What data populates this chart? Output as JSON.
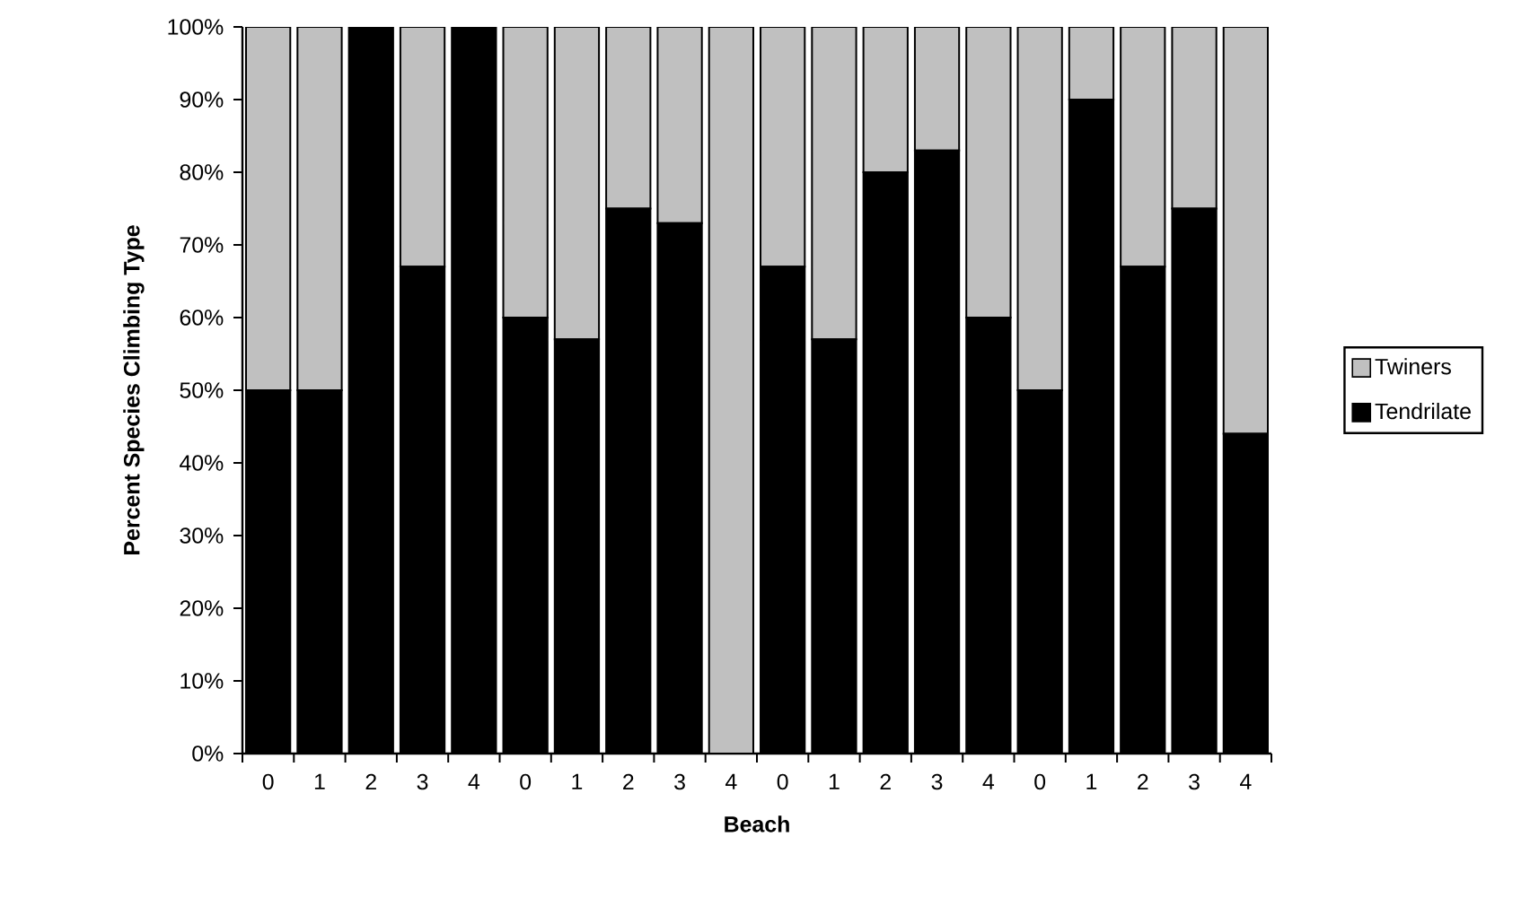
{
  "chart_data": {
    "type": "bar",
    "stacked": true,
    "xlabel": "Beach",
    "ylabel": "Percent Species Climbing Type",
    "categories": [
      "0",
      "1",
      "2",
      "3",
      "4",
      "0",
      "1",
      "2",
      "3",
      "4",
      "0",
      "1",
      "2",
      "3",
      "4",
      "0",
      "1",
      "2",
      "3",
      "4"
    ],
    "series": [
      {
        "name": "Tendrilate",
        "color": "#000000",
        "values": [
          50,
          50,
          100,
          67,
          100,
          60,
          57,
          75,
          73,
          0,
          67,
          57,
          80,
          83,
          60,
          50,
          90,
          67,
          75,
          44
        ]
      },
      {
        "name": "Twiners",
        "color": "#c0c0c0",
        "values": [
          50,
          50,
          0,
          33,
          0,
          40,
          43,
          25,
          27,
          100,
          33,
          43,
          20,
          17,
          40,
          50,
          10,
          33,
          25,
          56
        ]
      }
    ],
    "ylim": [
      0,
      100
    ],
    "yticks": [
      {
        "value": 0,
        "label": "0%"
      },
      {
        "value": 10,
        "label": "10%"
      },
      {
        "value": 20,
        "label": "20%"
      },
      {
        "value": 30,
        "label": "30%"
      },
      {
        "value": 40,
        "label": "40%"
      },
      {
        "value": 50,
        "label": "50%"
      },
      {
        "value": 60,
        "label": "60%"
      },
      {
        "value": 70,
        "label": "70%"
      },
      {
        "value": 80,
        "label": "80%"
      },
      {
        "value": 90,
        "label": "90%"
      },
      {
        "value": 100,
        "label": "100%"
      }
    ],
    "legend": "right",
    "grid": false
  }
}
